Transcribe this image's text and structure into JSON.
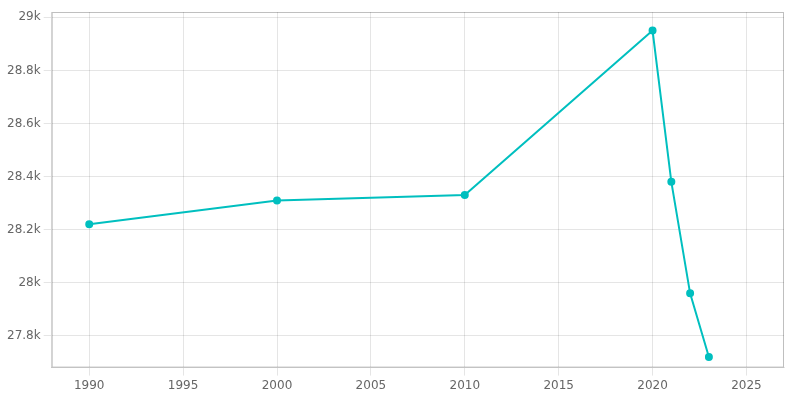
{
  "chart_data": {
    "type": "line",
    "x": [
      1990,
      2000,
      2010,
      2020,
      2021,
      2022,
      2023
    ],
    "values": [
      28220,
      28310,
      28330,
      28950,
      28380,
      27960,
      27720
    ],
    "color": "#00BFBF",
    "marker": "o",
    "xlim": [
      1988,
      2027
    ],
    "xticks": [
      1990,
      1995,
      2000,
      2005,
      2010,
      2015,
      2020,
      2025
    ],
    "ylim": [
      27680,
      29020
    ],
    "yticks": [
      {
        "value": 27800,
        "label": "27.8k"
      },
      {
        "value": 28000,
        "label": "28k"
      },
      {
        "value": 28200,
        "label": "28.2k"
      },
      {
        "value": 28400,
        "label": "28.4k"
      },
      {
        "value": 28600,
        "label": "28.6k"
      },
      {
        "value": 28800,
        "label": "28.8k"
      },
      {
        "value": 29000,
        "label": "29k"
      }
    ],
    "grid": true
  }
}
